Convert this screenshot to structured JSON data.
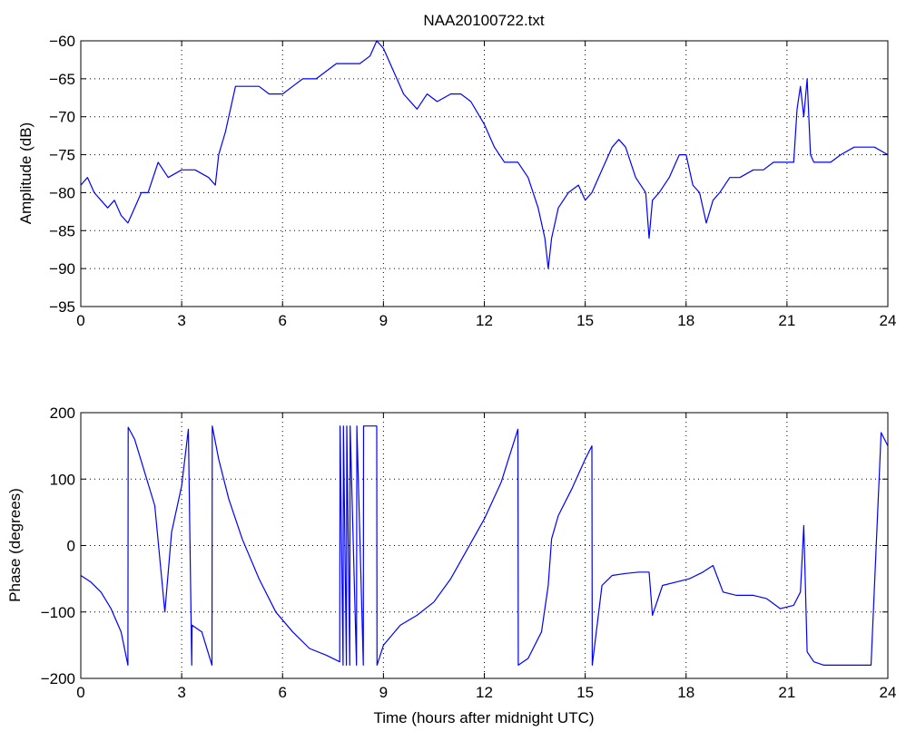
{
  "figure_title": "NAA20100722.txt",
  "colors": {
    "line": "#0000ff",
    "axes": "#000000",
    "grid": "#000000",
    "background": "#ffffff"
  },
  "chart_data": [
    {
      "type": "line",
      "title": "NAA20100722.txt",
      "xlabel": "",
      "ylabel": "Amplitude (dB)",
      "xlim": [
        0,
        24
      ],
      "ylim": [
        -95,
        -60
      ],
      "xticks": [
        0,
        3,
        6,
        9,
        12,
        15,
        18,
        21,
        24
      ],
      "yticks": [
        -95,
        -90,
        -85,
        -80,
        -75,
        -70,
        -65,
        -60
      ],
      "grid": true,
      "series": [
        {
          "x": [
            0,
            0.2,
            0.4,
            0.6,
            0.8,
            1.0,
            1.2,
            1.4,
            1.6,
            1.8,
            2.0,
            2.3,
            2.6,
            3.0,
            3.4,
            3.8,
            4.0,
            4.1,
            4.3,
            4.6,
            5.0,
            5.3,
            5.6,
            6.0,
            6.3,
            6.6,
            7.0,
            7.3,
            7.6,
            8.0,
            8.3,
            8.6,
            8.8,
            9.0,
            9.3,
            9.6,
            10.0,
            10.3,
            10.6,
            11.0,
            11.3,
            11.6,
            12.0,
            12.3,
            12.6,
            13.0,
            13.3,
            13.6,
            13.8,
            13.9,
            14.0,
            14.2,
            14.5,
            14.8,
            15.0,
            15.2,
            15.5,
            15.8,
            16.0,
            16.2,
            16.5,
            16.8,
            16.9,
            17.0,
            17.2,
            17.5,
            17.8,
            18.0,
            18.2,
            18.4,
            18.6,
            18.8,
            19.0,
            19.3,
            19.6,
            20.0,
            20.3,
            20.6,
            21.0,
            21.2,
            21.3,
            21.4,
            21.5,
            21.6,
            21.7,
            21.8,
            22.0,
            22.3,
            22.6,
            23.0,
            23.3,
            23.6,
            24.0
          ],
          "y": [
            -79,
            -78,
            -80,
            -81,
            -82,
            -81,
            -83,
            -84,
            -82,
            -80,
            -80,
            -76,
            -78,
            -77,
            -77,
            -78,
            -79,
            -75,
            -72,
            -66,
            -66,
            -66,
            -67,
            -67,
            -66,
            -65,
            -65,
            -64,
            -63,
            -63,
            -63,
            -62,
            -60,
            -61,
            -64,
            -67,
            -69,
            -67,
            -68,
            -67,
            -67,
            -68,
            -71,
            -74,
            -76,
            -76,
            -78,
            -82,
            -86,
            -90,
            -86,
            -82,
            -80,
            -79,
            -81,
            -80,
            -77,
            -74,
            -73,
            -74,
            -78,
            -80,
            -86,
            -81,
            -80,
            -78,
            -75,
            -75,
            -79,
            -80,
            -84,
            -81,
            -80,
            -78,
            -78,
            -77,
            -77,
            -76,
            -76,
            -76,
            -69,
            -66,
            -70,
            -65,
            -75,
            -76,
            -76,
            -76,
            -75,
            -74,
            -74,
            -74,
            -75
          ]
        }
      ]
    },
    {
      "type": "line",
      "title": "",
      "xlabel": "Time (hours after midnight UTC)",
      "ylabel": "Phase (degrees)",
      "xlim": [
        0,
        24
      ],
      "ylim": [
        -200,
        200
      ],
      "xticks": [
        0,
        3,
        6,
        9,
        12,
        15,
        18,
        21,
        24
      ],
      "yticks": [
        -200,
        -100,
        0,
        100,
        200
      ],
      "grid": true,
      "series": [
        {
          "x": [
            0,
            0.3,
            0.6,
            0.9,
            1.2,
            1.4,
            1.41,
            1.6,
            1.9,
            2.2,
            2.5,
            2.7,
            3.0,
            3.2,
            3.3,
            3.31,
            3.6,
            3.9,
            3.91,
            4.1,
            4.4,
            4.8,
            5.3,
            5.8,
            6.3,
            6.8,
            7.3,
            7.7,
            7.71,
            7.8,
            7.81,
            7.9,
            7.91,
            8.0,
            8.01,
            8.2,
            8.21,
            8.4,
            8.41,
            8.8,
            8.81,
            9.0,
            9.5,
            10.0,
            10.5,
            11.0,
            11.5,
            12.0,
            12.5,
            13.0,
            13.01,
            13.3,
            13.7,
            13.9,
            14.0,
            14.2,
            14.6,
            15.0,
            15.2,
            15.21,
            15.5,
            15.8,
            16.2,
            16.6,
            16.9,
            17.0,
            17.3,
            17.7,
            18.1,
            18.5,
            18.8,
            19.1,
            19.5,
            20.0,
            20.4,
            20.8,
            21.2,
            21.4,
            21.5,
            21.6,
            21.8,
            22.1,
            22.5,
            23.0,
            23.5,
            23.8,
            24.0
          ],
          "y": [
            -45,
            -55,
            -70,
            -95,
            -130,
            -180,
            178,
            160,
            110,
            60,
            -100,
            20,
            90,
            175,
            -180,
            -120,
            -130,
            -180,
            180,
            130,
            70,
            10,
            -50,
            -100,
            -130,
            -155,
            -165,
            -175,
            180,
            -180,
            180,
            -180,
            180,
            -180,
            180,
            -180,
            180,
            -180,
            180,
            180,
            -180,
            -150,
            -120,
            -105,
            -85,
            -50,
            -5,
            40,
            95,
            175,
            -180,
            -170,
            -130,
            -60,
            10,
            45,
            85,
            130,
            150,
            -180,
            -60,
            -45,
            -42,
            -40,
            -40,
            -105,
            -60,
            -55,
            -50,
            -40,
            -30,
            -70,
            -75,
            -75,
            -80,
            -95,
            -90,
            -70,
            30,
            -160,
            -175,
            -180,
            -180,
            -180,
            -180,
            170,
            150
          ]
        }
      ]
    }
  ]
}
